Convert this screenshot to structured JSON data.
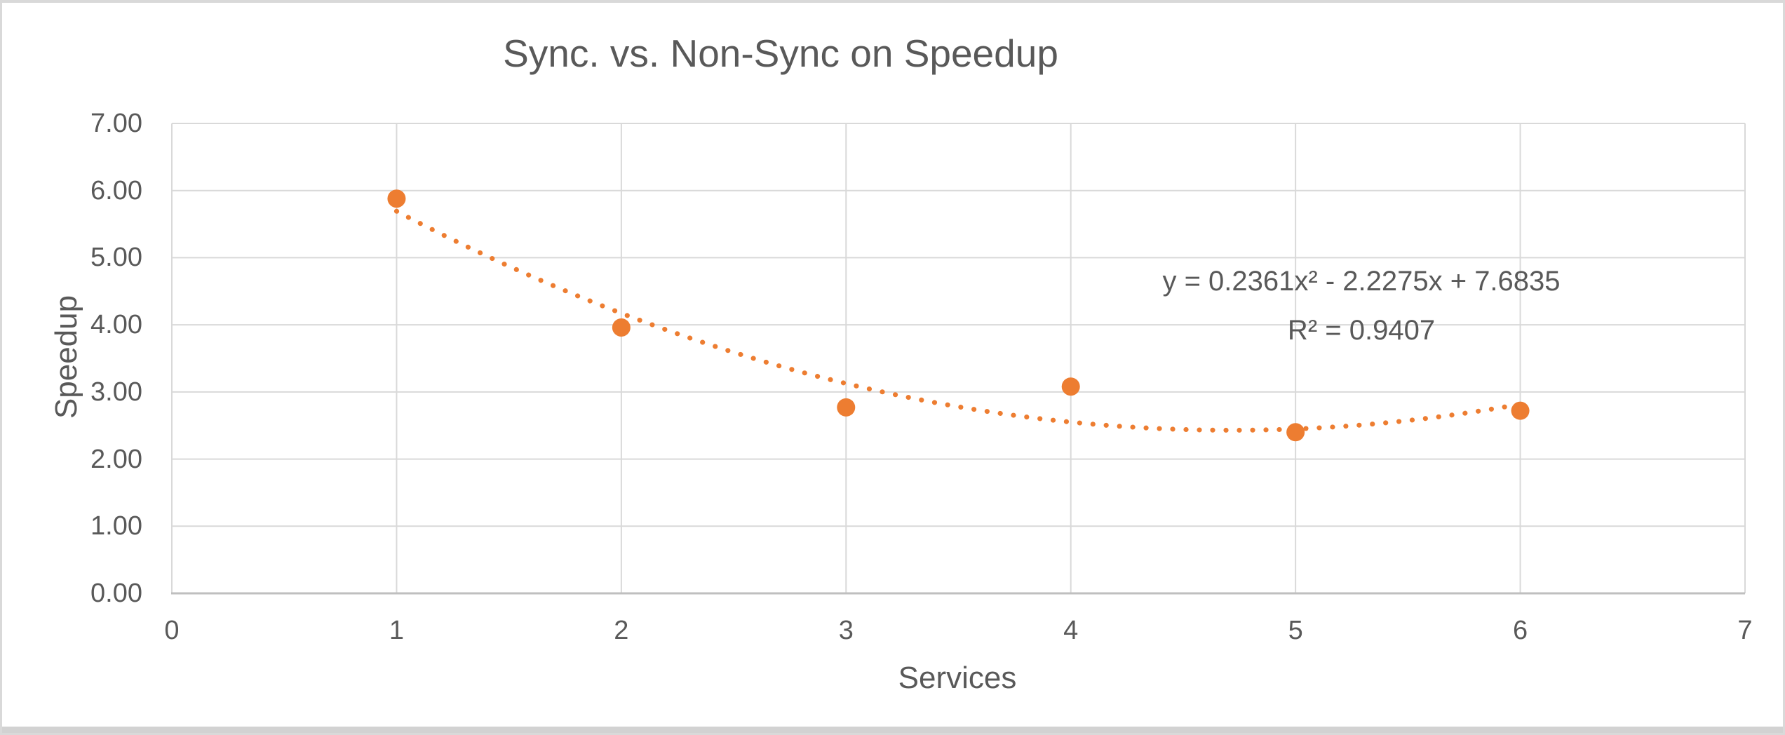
{
  "chart": {
    "title": "Sync. vs. Non-Sync on Speedup",
    "y_axis_title": "Speedup",
    "x_axis_title": "Services",
    "equation_line1": "y = 0.2361x² - 2.2275x + 7.6835",
    "equation_line2": "R² = 0.9407"
  },
  "chart_data": {
    "type": "scatter",
    "title": "Sync. vs. Non-Sync on Speedup",
    "xlabel": "Services",
    "ylabel": "Speedup",
    "xlim": [
      0,
      7
    ],
    "ylim": [
      0,
      7
    ],
    "x_ticks": [
      0,
      1,
      2,
      3,
      4,
      5,
      6,
      7
    ],
    "y_ticks": [
      "0.00",
      "1.00",
      "2.00",
      "3.00",
      "4.00",
      "5.00",
      "6.00",
      "7.00"
    ],
    "grid": true,
    "legend": "none",
    "series": [
      {
        "name": "Speedup",
        "x": [
          1,
          2,
          3,
          4,
          5,
          6
        ],
        "y": [
          5.88,
          3.96,
          2.77,
          3.08,
          2.4,
          2.72
        ]
      }
    ],
    "trendline": {
      "type": "polynomial",
      "degree": 2,
      "a": 0.2361,
      "b": -2.2275,
      "c": 7.6835,
      "equation": "y = 0.2361x² - 2.2275x + 7.6835",
      "r_squared": 0.9407,
      "x_start": 1,
      "x_end": 6,
      "style": "dotted"
    },
    "colors": {
      "marker": "#ED7D31",
      "trendline": "#ED7D31",
      "gridline": "#D9D9D9",
      "axis_line": "#BFBFBF",
      "text": "#595959"
    }
  }
}
